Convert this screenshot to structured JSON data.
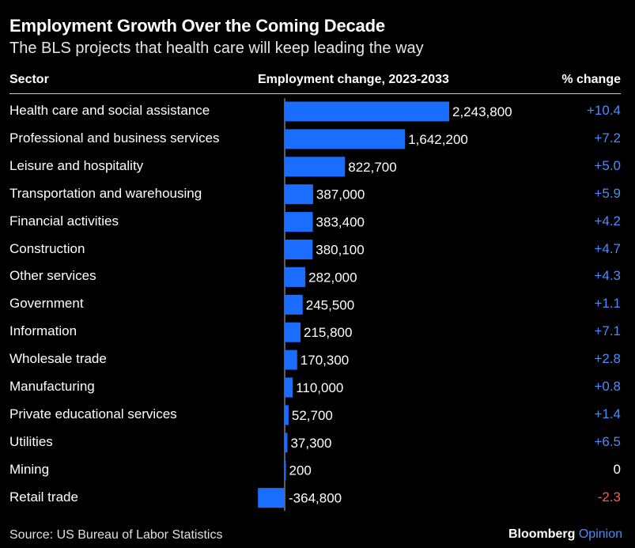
{
  "title": "Employment Growth Over the Coming Decade",
  "subtitle": "The BLS projects that health care will keep leading the way",
  "headers": {
    "sector": "Sector",
    "change": "Employment change, 2023-2033",
    "pct": "% change"
  },
  "footer": {
    "source": "Source: US Bureau of Labor Statistics",
    "brand": "Bloomberg",
    "brand_suffix": "Opinion"
  },
  "colors": {
    "bar": "#1a6dff",
    "positive_pct": "#4a8cff",
    "negative_pct": "#ff5a5a",
    "zero_pct": "#ffffff"
  },
  "chart_data": {
    "type": "bar",
    "orientation": "horizontal",
    "categories": [
      "Health care and social assistance",
      "Professional and business services",
      "Leisure and hospitality",
      "Transportation and warehousing",
      "Financial activities",
      "Construction",
      "Other services",
      "Government",
      "Information",
      "Wholesale trade",
      "Manufacturing",
      "Private educational services",
      "Utilities",
      "Mining",
      "Retail trade"
    ],
    "values": [
      2243800,
      1642200,
      822700,
      387000,
      383400,
      380100,
      282000,
      245500,
      215800,
      170300,
      110000,
      52700,
      37300,
      200,
      -364800
    ],
    "value_labels": [
      "2,243,800",
      "1,642,200",
      "822,700",
      "387,000",
      "383,400",
      "380,100",
      "282,000",
      "245,500",
      "215,800",
      "170,300",
      "110,000",
      "52,700",
      "37,300",
      "200",
      "-364,800"
    ],
    "pct_change": [
      10.4,
      7.2,
      5.0,
      5.9,
      4.2,
      4.7,
      4.3,
      1.1,
      7.1,
      2.8,
      0.8,
      1.4,
      6.5,
      0,
      -2.3
    ],
    "pct_labels": [
      "+10.4",
      "+7.2",
      "+5.0",
      "+5.9",
      "+4.2",
      "+4.7",
      "+4.3",
      "+1.1",
      "+7.1",
      "+2.8",
      "+0.8",
      "+1.4",
      "+6.5",
      "0",
      "-2.3"
    ],
    "grid": false
  }
}
